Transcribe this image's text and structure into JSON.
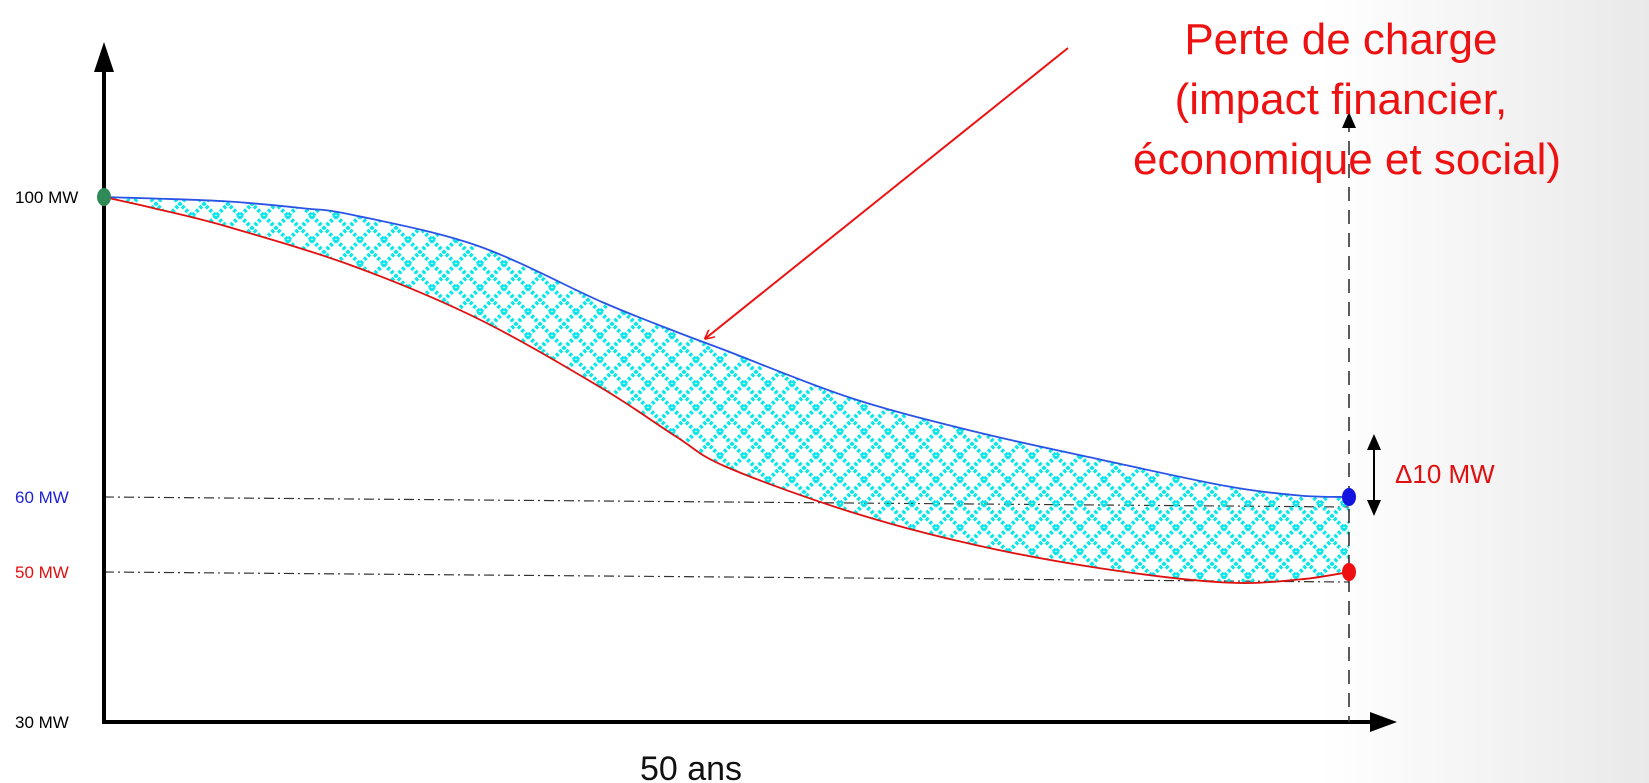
{
  "chart_data": {
    "type": "line",
    "xlabel": "50 ans",
    "ylim": [
      30,
      110
    ],
    "y_ticks": [
      {
        "value": 100,
        "label": "100 MW",
        "color": "#000000"
      },
      {
        "value": 60,
        "label": "60 MW",
        "color": "#1f1fd6"
      },
      {
        "value": 50,
        "label": "50 MW",
        "color": "#e01010"
      },
      {
        "value": 30,
        "label": "30 MW",
        "color": "#000000"
      }
    ],
    "series": [
      {
        "color": "#2b54e6",
        "x": [
          0,
          2,
          5,
          8,
          10,
          15,
          20,
          23,
          25,
          30,
          35,
          40,
          45,
          48,
          50
        ],
        "y": [
          100,
          99.8,
          99.4,
          98.5,
          97.6,
          93.5,
          86.0,
          82.0,
          79.5,
          73.2,
          68.7,
          65.0,
          61.5,
          60.2,
          60
        ]
      },
      {
        "color": "#e01010",
        "x": [
          0,
          2,
          5,
          10,
          15,
          20,
          23,
          25,
          30,
          35,
          40,
          45,
          48,
          50
        ],
        "y": [
          100,
          98.5,
          96.0,
          90.8,
          83.8,
          74.5,
          68.0,
          64.0,
          58.0,
          53.6,
          50.5,
          48.6,
          49.0,
          50
        ]
      }
    ],
    "points": [
      {
        "x": 0,
        "y": 100,
        "color": "#2e8b57"
      },
      {
        "x": 50,
        "y": 60,
        "color": "#1414e0"
      },
      {
        "x": 50,
        "y": 50,
        "color": "#ee1010"
      }
    ],
    "shaded_area_color": "#00e5e5",
    "annotation": {
      "lines": [
        "Perte de charge",
        "(impact financier,",
        "économique et social)"
      ],
      "color": "#ee1111"
    },
    "delta_label": "Δ10 MW",
    "delta_color": "#e01010"
  }
}
